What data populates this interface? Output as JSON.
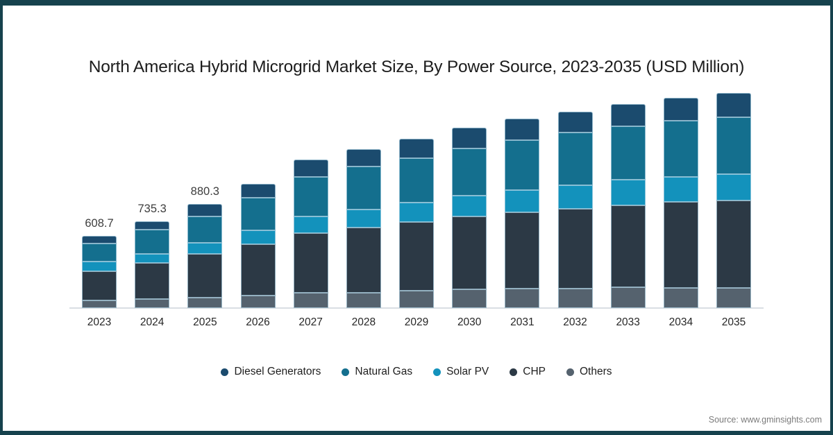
{
  "title": "North America Hybrid Microgrid Market Size, By Power Source, 2023-2035 (USD Million)",
  "source": "Source: www.gminsights.com",
  "frame_color": "#16424d",
  "chart_data": {
    "type": "bar",
    "stacked": true,
    "title": "North America Hybrid Microgrid Market Size, By Power Source, 2023-2035 (USD Million)",
    "unit": "USD Million",
    "xlabel": "",
    "ylabel": "",
    "grid": false,
    "legend_position": "bottom",
    "ylim": [
      0,
      1900
    ],
    "categories": [
      "2023",
      "2024",
      "2025",
      "2026",
      "2027",
      "2028",
      "2029",
      "2030",
      "2031",
      "2032",
      "2033",
      "2034",
      "2035"
    ],
    "series": [
      {
        "name": "Diesel Generators",
        "color": "#1b4b6e",
        "values": [
          62,
          72,
          108,
          117,
          143,
          147,
          166,
          176,
          178,
          180,
          190,
          191,
          206
        ]
      },
      {
        "name": "Natural Gas",
        "color": "#146f8e",
        "values": [
          153,
          205,
          219,
          274,
          333,
          362,
          374,
          401,
          424,
          442,
          450,
          474,
          484
        ]
      },
      {
        "name": "Solar PV",
        "color": "#1392bc",
        "values": [
          85,
          78,
          98,
          121,
          145,
          157,
          166,
          176,
          186,
          204,
          215,
          215,
          221
        ]
      },
      {
        "name": "CHP",
        "color": "#2c3945",
        "values": [
          243,
          303,
          367,
          430,
          505,
          552,
          581,
          616,
          646,
          671,
          695,
          724,
          738
        ]
      },
      {
        "name": "Others",
        "color": "#55626e",
        "values": [
          66,
          78,
          88,
          107,
          127,
          127,
          147,
          156,
          166,
          166,
          176,
          172,
          172
        ]
      }
    ],
    "stack_order_bottom_to_top": [
      "Others",
      "CHP",
      "Solar PV",
      "Natural Gas",
      "Diesel Generators"
    ],
    "estimated_totals": [
      609,
      736,
      880,
      1049,
      1253,
      1345,
      1434,
      1525,
      1600,
      1663,
      1726,
      1776,
      1821
    ],
    "totals_labeled": [
      "608.7",
      "735.3",
      "880.3",
      "",
      "",
      "",
      "",
      "",
      "",
      "",
      "",
      "",
      ""
    ]
  }
}
